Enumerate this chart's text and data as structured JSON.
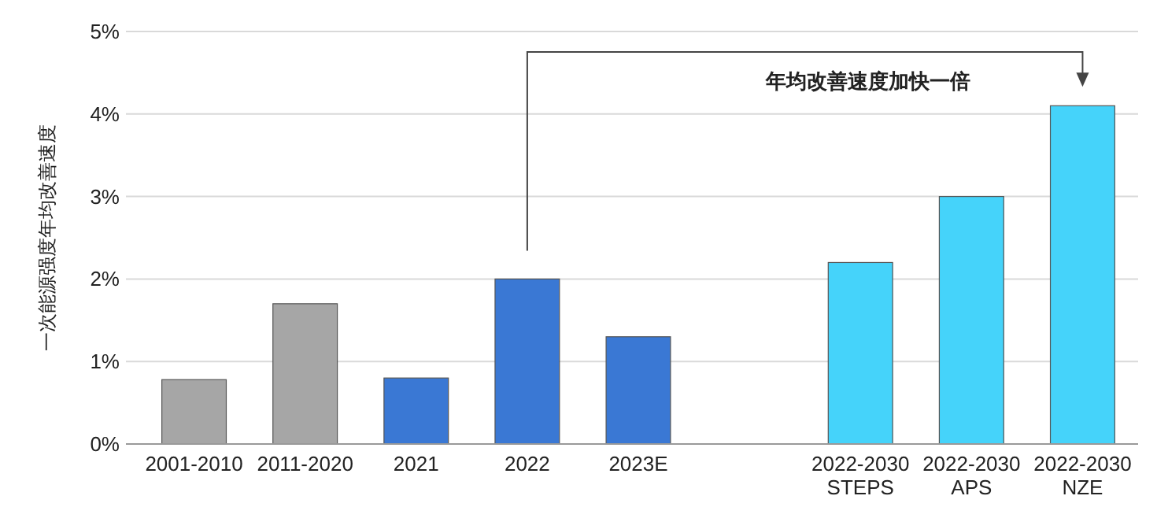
{
  "chart_data": {
    "type": "bar",
    "ylabel": "一次能源强度年均改善速度",
    "categories": [
      "2001-2010",
      "2011-2020",
      "2021",
      "2022",
      "2023E",
      null,
      "2022-2030\nSTEPS",
      "2022-2030\nAPS",
      "2022-2030\nNZE"
    ],
    "values": [
      0.78,
      1.7,
      0.8,
      2.0,
      1.3,
      null,
      2.2,
      3.0,
      4.1
    ],
    "colors": [
      "#a6a6a6",
      "#a6a6a6",
      "#3a78d4",
      "#3a78d4",
      "#3a78d4",
      null,
      "#45d3fa",
      "#45d3fa",
      "#45d3fa"
    ],
    "ylim": [
      0,
      5
    ],
    "yticks": [
      {
        "value": 0,
        "label": "0%"
      },
      {
        "value": 1,
        "label": "1%"
      },
      {
        "value": 2,
        "label": "2%"
      },
      {
        "value": 3,
        "label": "3%"
      },
      {
        "value": 4,
        "label": "4%"
      },
      {
        "value": 5,
        "label": "5%"
      }
    ],
    "grid": "y",
    "annotations": [
      "年均改善速度加快一倍"
    ]
  }
}
